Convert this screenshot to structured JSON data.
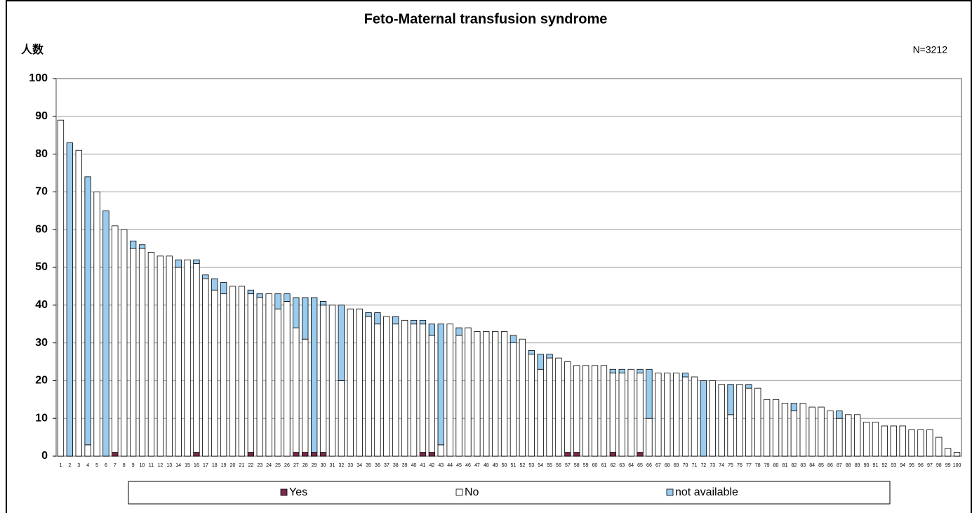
{
  "chart_data": {
    "type": "stacked_bar",
    "title": "Feto-Maternal transfusion syndrome",
    "y_axis_label": "人数",
    "annotation": "N=3212",
    "categories": [
      "1",
      "2",
      "3",
      "4",
      "5",
      "6",
      "7",
      "8",
      "9",
      "10",
      "11",
      "12",
      "13",
      "14",
      "15",
      "16",
      "17",
      "18",
      "19",
      "20",
      "21",
      "22",
      "23",
      "24",
      "25",
      "26",
      "27",
      "28",
      "29",
      "30",
      "31",
      "32",
      "33",
      "34",
      "35",
      "36",
      "37",
      "38",
      "39",
      "40",
      "41",
      "42",
      "43",
      "44",
      "45",
      "46",
      "47",
      "48",
      "49",
      "50",
      "51",
      "52",
      "53",
      "54",
      "55",
      "56",
      "57",
      "58",
      "59",
      "60",
      "61",
      "62",
      "63",
      "64",
      "65",
      "66",
      "67",
      "68",
      "69",
      "70",
      "71",
      "72",
      "73",
      "74",
      "75",
      "76",
      "77",
      "78",
      "79",
      "80",
      "81",
      "82",
      "83",
      "84",
      "85",
      "86",
      "87",
      "88",
      "89",
      "90",
      "91",
      "92",
      "93",
      "94",
      "95",
      "96",
      "97",
      "98",
      "99",
      "100"
    ],
    "series": [
      {
        "name": "Yes",
        "color": "#7b2a4c",
        "values": [
          0,
          0,
          0,
          0,
          0,
          0,
          1,
          0,
          0,
          0,
          0,
          0,
          0,
          0,
          0,
          1,
          0,
          0,
          0,
          0,
          0,
          1,
          0,
          0,
          0,
          0,
          1,
          1,
          1,
          1,
          0,
          0,
          0,
          0,
          0,
          0,
          0,
          0,
          0,
          0,
          1,
          1,
          0,
          0,
          0,
          0,
          0,
          0,
          0,
          0,
          0,
          0,
          0,
          0,
          0,
          0,
          1,
          1,
          0,
          0,
          0,
          1,
          0,
          0,
          1,
          0,
          0,
          0,
          0,
          0,
          0,
          0,
          0,
          0,
          0,
          0,
          0,
          0,
          0,
          0,
          0,
          0,
          0,
          0,
          0,
          0,
          0,
          0,
          0,
          0,
          0,
          0,
          0,
          0,
          0,
          0,
          0,
          0,
          0,
          0
        ]
      },
      {
        "name": "No",
        "color": "#ffffff",
        "values": [
          89,
          0,
          81,
          3,
          70,
          0,
          60,
          60,
          55,
          55,
          54,
          53,
          53,
          50,
          52,
          50,
          47,
          44,
          43,
          45,
          45,
          42,
          42,
          43,
          39,
          41,
          33,
          30,
          0,
          39,
          40,
          20,
          39,
          39,
          37,
          35,
          37,
          35,
          36,
          35,
          34,
          31,
          3,
          35,
          32,
          34,
          33,
          33,
          33,
          33,
          30,
          31,
          27,
          23,
          26,
          26,
          24,
          23,
          24,
          24,
          24,
          21,
          22,
          23,
          21,
          10,
          22,
          22,
          22,
          21,
          21,
          0,
          20,
          19,
          11,
          19,
          18,
          18,
          15,
          15,
          14,
          12,
          14,
          13,
          13,
          12,
          10,
          11,
          11,
          9,
          9,
          8,
          8,
          8,
          7,
          7,
          7,
          5,
          2,
          1
        ]
      },
      {
        "name": "not available",
        "color": "#99ccee",
        "values": [
          0,
          83,
          0,
          71,
          0,
          65,
          0,
          0,
          2,
          1,
          0,
          0,
          0,
          2,
          0,
          1,
          1,
          3,
          3,
          0,
          0,
          1,
          1,
          0,
          4,
          2,
          8,
          11,
          41,
          1,
          0,
          20,
          0,
          0,
          1,
          3,
          0,
          2,
          0,
          1,
          1,
          3,
          32,
          0,
          2,
          0,
          0,
          0,
          0,
          0,
          2,
          0,
          1,
          4,
          1,
          0,
          0,
          0,
          0,
          0,
          0,
          1,
          1,
          0,
          1,
          13,
          0,
          0,
          0,
          1,
          0,
          20,
          0,
          0,
          8,
          0,
          1,
          0,
          0,
          0,
          0,
          2,
          0,
          0,
          0,
          0,
          2,
          0,
          0,
          0,
          0,
          0,
          0,
          0,
          0,
          0,
          0,
          0,
          0,
          0
        ]
      }
    ],
    "ylim": [
      0,
      100
    ],
    "yticks": [
      0,
      10,
      20,
      30,
      40,
      50,
      60,
      70,
      80,
      90,
      100
    ],
    "grid": true,
    "legend": "bottom"
  }
}
